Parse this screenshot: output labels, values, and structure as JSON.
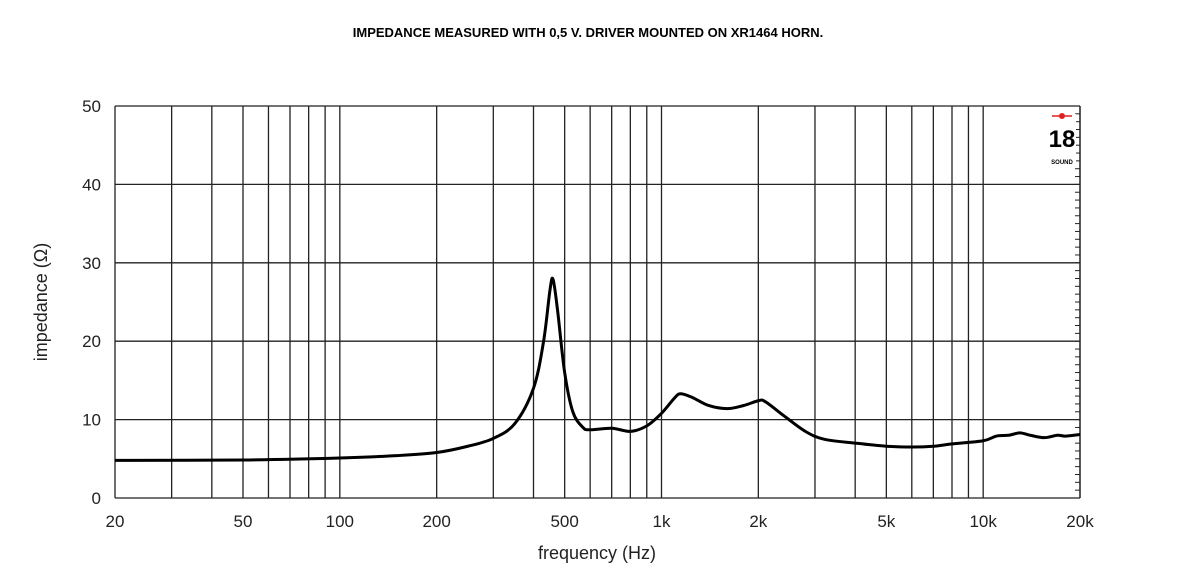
{
  "chart_data": {
    "type": "line",
    "title": "IMPEDANCE MEASURED WITH 0,5 V. DRIVER MOUNTED ON XR1464 HORN.",
    "xlabel": "frequency (Hz)",
    "ylabel": "impedance (Ω)",
    "x_scale": "log",
    "xlim": [
      20,
      20000
    ],
    "ylim": [
      0,
      50
    ],
    "grid": true,
    "x_ticks": [
      20,
      50,
      100,
      200,
      500,
      1000,
      2000,
      5000,
      10000,
      20000
    ],
    "x_tick_labels": [
      "20",
      "50",
      "100",
      "200",
      "500",
      "1k",
      "2k",
      "5k",
      "10k",
      "20k"
    ],
    "y_ticks": [
      0,
      10,
      20,
      30,
      40,
      50
    ],
    "y_tick_labels": [
      "0",
      "10",
      "20",
      "30",
      "40",
      "50"
    ],
    "line_color": "#000000",
    "series": [
      {
        "x": [
          20,
          50,
          100,
          150,
          200,
          250,
          300,
          350,
          400,
          430,
          450,
          460,
          475,
          500,
          530,
          570,
          600,
          700,
          800,
          900,
          1000,
          1100,
          1150,
          1250,
          1400,
          1600,
          1800,
          2000,
          2100,
          2400,
          2800,
          3200,
          4000,
          5000,
          6000,
          7000,
          8000,
          10000,
          11000,
          12000,
          13000,
          14000,
          15500,
          17000,
          18000,
          20000
        ],
        "y": [
          4.8,
          4.85,
          5.1,
          5.4,
          5.8,
          6.6,
          7.6,
          9.5,
          14,
          20,
          26.5,
          27.9,
          24,
          16,
          11,
          9,
          8.7,
          8.9,
          8.5,
          9.2,
          10.8,
          12.8,
          13.3,
          12.8,
          11.8,
          11.4,
          11.8,
          12.4,
          12.3,
          10.5,
          8.5,
          7.5,
          7.0,
          6.6,
          6.5,
          6.6,
          6.9,
          7.3,
          7.9,
          8.0,
          8.3,
          8.0,
          7.7,
          8.0,
          7.9,
          8.1
        ]
      }
    ]
  },
  "logo": {
    "text": "18",
    "subtext": "SOUND",
    "accent": "#e02020"
  }
}
